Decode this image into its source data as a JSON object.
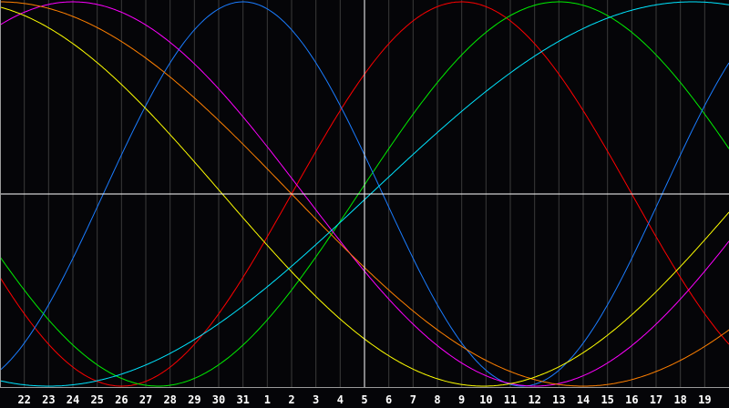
{
  "chart_data": {
    "type": "line",
    "categories": [
      "22",
      "23",
      "24",
      "25",
      "26",
      "27",
      "28",
      "29",
      "30",
      "31",
      "1",
      "2",
      "3",
      "4",
      "5",
      "6",
      "7",
      "8",
      "9",
      "10",
      "11",
      "12",
      "13",
      "14",
      "15",
      "16",
      "17",
      "18",
      "19"
    ],
    "current_day": "5",
    "ylim": [
      -1,
      1
    ],
    "grid": true,
    "background": "#050508",
    "grid_color": "#3a3a3a",
    "axis_color": "#ffffff",
    "series": [
      {
        "color": "#ff0000",
        "period_days": 28,
        "peak_day": "9"
      },
      {
        "color": "#00ee00",
        "period_days": 33,
        "peak_day": "13"
      },
      {
        "color": "#1a7cff",
        "period_days": 23,
        "peak_day": "31"
      },
      {
        "color": "#ff00ff",
        "period_days": 38,
        "peak_day": "24"
      },
      {
        "color": "#ff8000",
        "period_days": 48,
        "peak_day": "21"
      },
      {
        "color": "#ffff00",
        "period_days": 43,
        "peak_day": "19"
      },
      {
        "color": "#00e5ff",
        "period_days": 53,
        "peak_day": "19"
      }
    ]
  }
}
